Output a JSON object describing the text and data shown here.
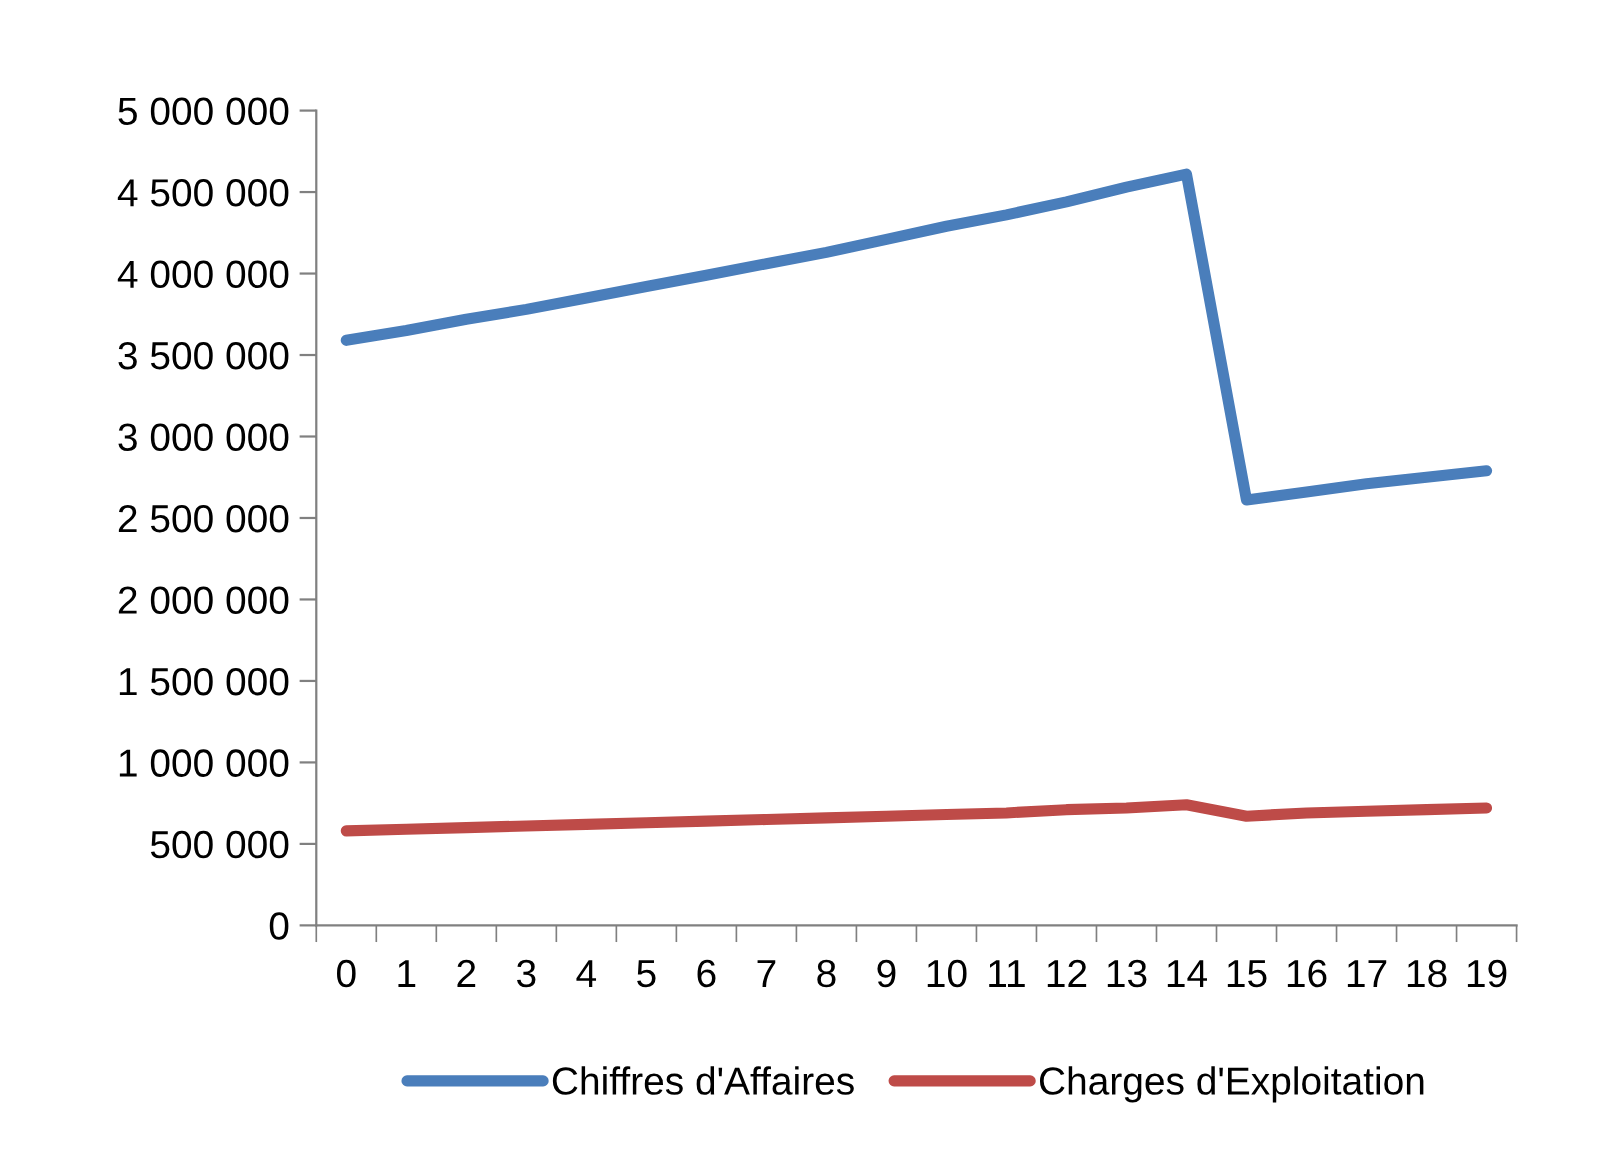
{
  "chart_data": {
    "type": "line",
    "categories": [
      "0",
      "1",
      "2",
      "3",
      "4",
      "5",
      "6",
      "7",
      "8",
      "9",
      "10",
      "11",
      "12",
      "13",
      "14",
      "15",
      "16",
      "17",
      "18",
      "19"
    ],
    "series": [
      {
        "name": "Chiffres d'Affaires",
        "color": "#4a7ebb",
        "values": [
          3590000,
          3650000,
          3720000,
          3780000,
          3850000,
          3920000,
          3990000,
          4060000,
          4130000,
          4210000,
          4290000,
          4360000,
          4440000,
          4530000,
          4610000,
          2610000,
          2660000,
          2710000,
          2750000,
          2790000
        ]
      },
      {
        "name": "Charges d'Exploitation",
        "color": "#be4b48",
        "values": [
          580000,
          590000,
          600000,
          610000,
          620000,
          630000,
          640000,
          650000,
          660000,
          670000,
          680000,
          690000,
          710000,
          720000,
          740000,
          670000,
          690000,
          700000,
          710000,
          720000
        ]
      }
    ],
    "ylim": [
      0,
      5000000
    ],
    "yticks": [
      {
        "value": 0,
        "label": "0"
      },
      {
        "value": 500000,
        "label": "500 000"
      },
      {
        "value": 1000000,
        "label": "1 000 000"
      },
      {
        "value": 1500000,
        "label": "1 500 000"
      },
      {
        "value": 2000000,
        "label": "2 000 000"
      },
      {
        "value": 2500000,
        "label": "2 500 000"
      },
      {
        "value": 3000000,
        "label": "3 000 000"
      },
      {
        "value": 3500000,
        "label": "3 500 000"
      },
      {
        "value": 4000000,
        "label": "4 000 000"
      },
      {
        "value": 4500000,
        "label": "4 500 000"
      },
      {
        "value": 5000000,
        "label": "5 000 000"
      }
    ],
    "grid": false,
    "legend": "bottom",
    "marker": "none",
    "line_style": "solid"
  }
}
